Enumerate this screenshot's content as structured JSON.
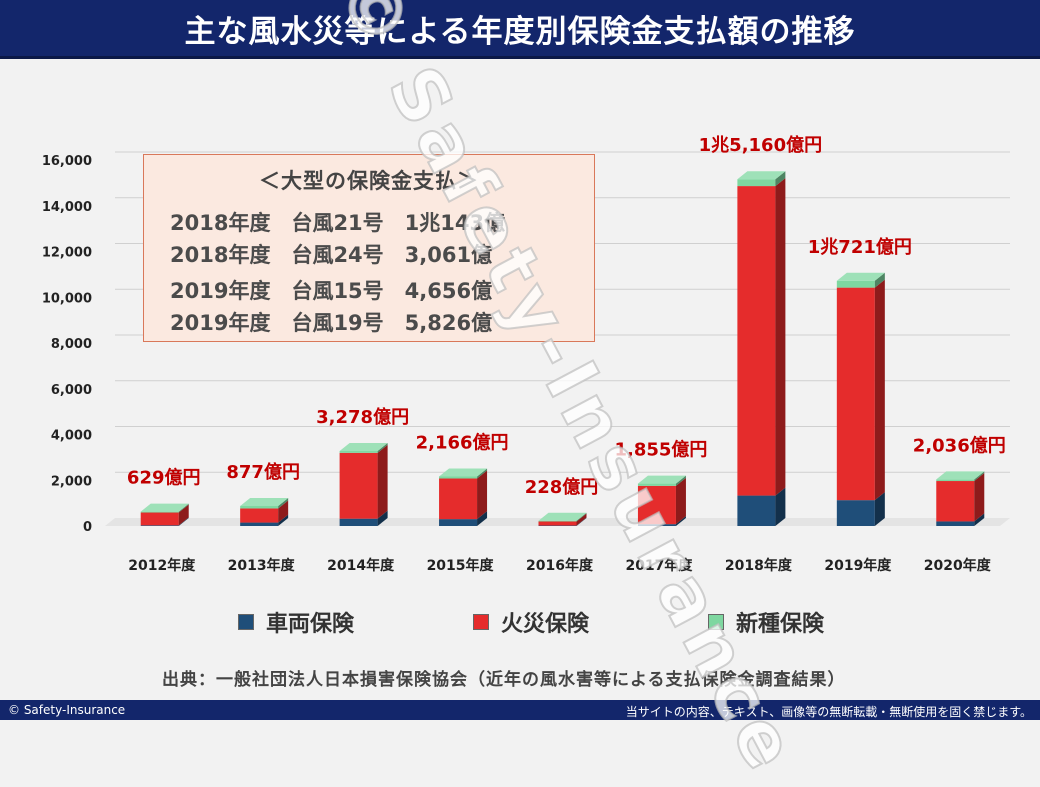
{
  "header": {
    "title": "主な風水災等による年度別保険金支払額の推移"
  },
  "infobox": {
    "title": "＜大型の保険金支払＞",
    "rows": [
      "2018年度　台風21号　1兆143億",
      "2018年度　台風24号　3,061億",
      "2019年度　台風15号　4,656億",
      "2019年度　台風19号　5,826億"
    ]
  },
  "chart_data": {
    "type": "bar",
    "stacked": true,
    "categories": [
      "2012年度",
      "2013年度",
      "2014年度",
      "2015年度",
      "2016年度",
      "2017年度",
      "2018年度",
      "2019年度",
      "2020年度"
    ],
    "series": [
      {
        "name": "車両保険",
        "color": "#1f4e79",
        "values": [
          30,
          150,
          320,
          300,
          20,
          80,
          1330,
          1130,
          200
        ]
      },
      {
        "name": "火災保険",
        "color": "#e52c2c",
        "values": [
          559,
          617,
          2878,
          1776,
          178,
          1675,
          13530,
          9291,
          1766
        ]
      },
      {
        "name": "新種保険",
        "color": "#7ed7a0",
        "values": [
          40,
          110,
          80,
          90,
          30,
          100,
          300,
          300,
          70
        ]
      }
    ],
    "data_labels": [
      "629億円",
      "877億円",
      "3,278億円",
      "2,166億円",
      "228億円",
      "1,855億円",
      "1兆5,160億円",
      "1兆721億円",
      "2,036億円"
    ],
    "y_ticks": [
      "0",
      "2,000",
      "4,000",
      "6,000",
      "8,000",
      "10,000",
      "12,000",
      "14,000",
      "16,000"
    ],
    "ylim": [
      0,
      16000
    ],
    "grid": true,
    "legend_position": "bottom"
  },
  "source": "出典：一般社団法人日本損害保険協会（近年の風水害等による支払保険金調査結果）",
  "watermark": "© Safety-Insurance",
  "footer": {
    "left": "© Safety-Insurance",
    "right": "当サイトの内容、テキスト、画像等の無断転載・無断使用を固く禁じます。"
  }
}
